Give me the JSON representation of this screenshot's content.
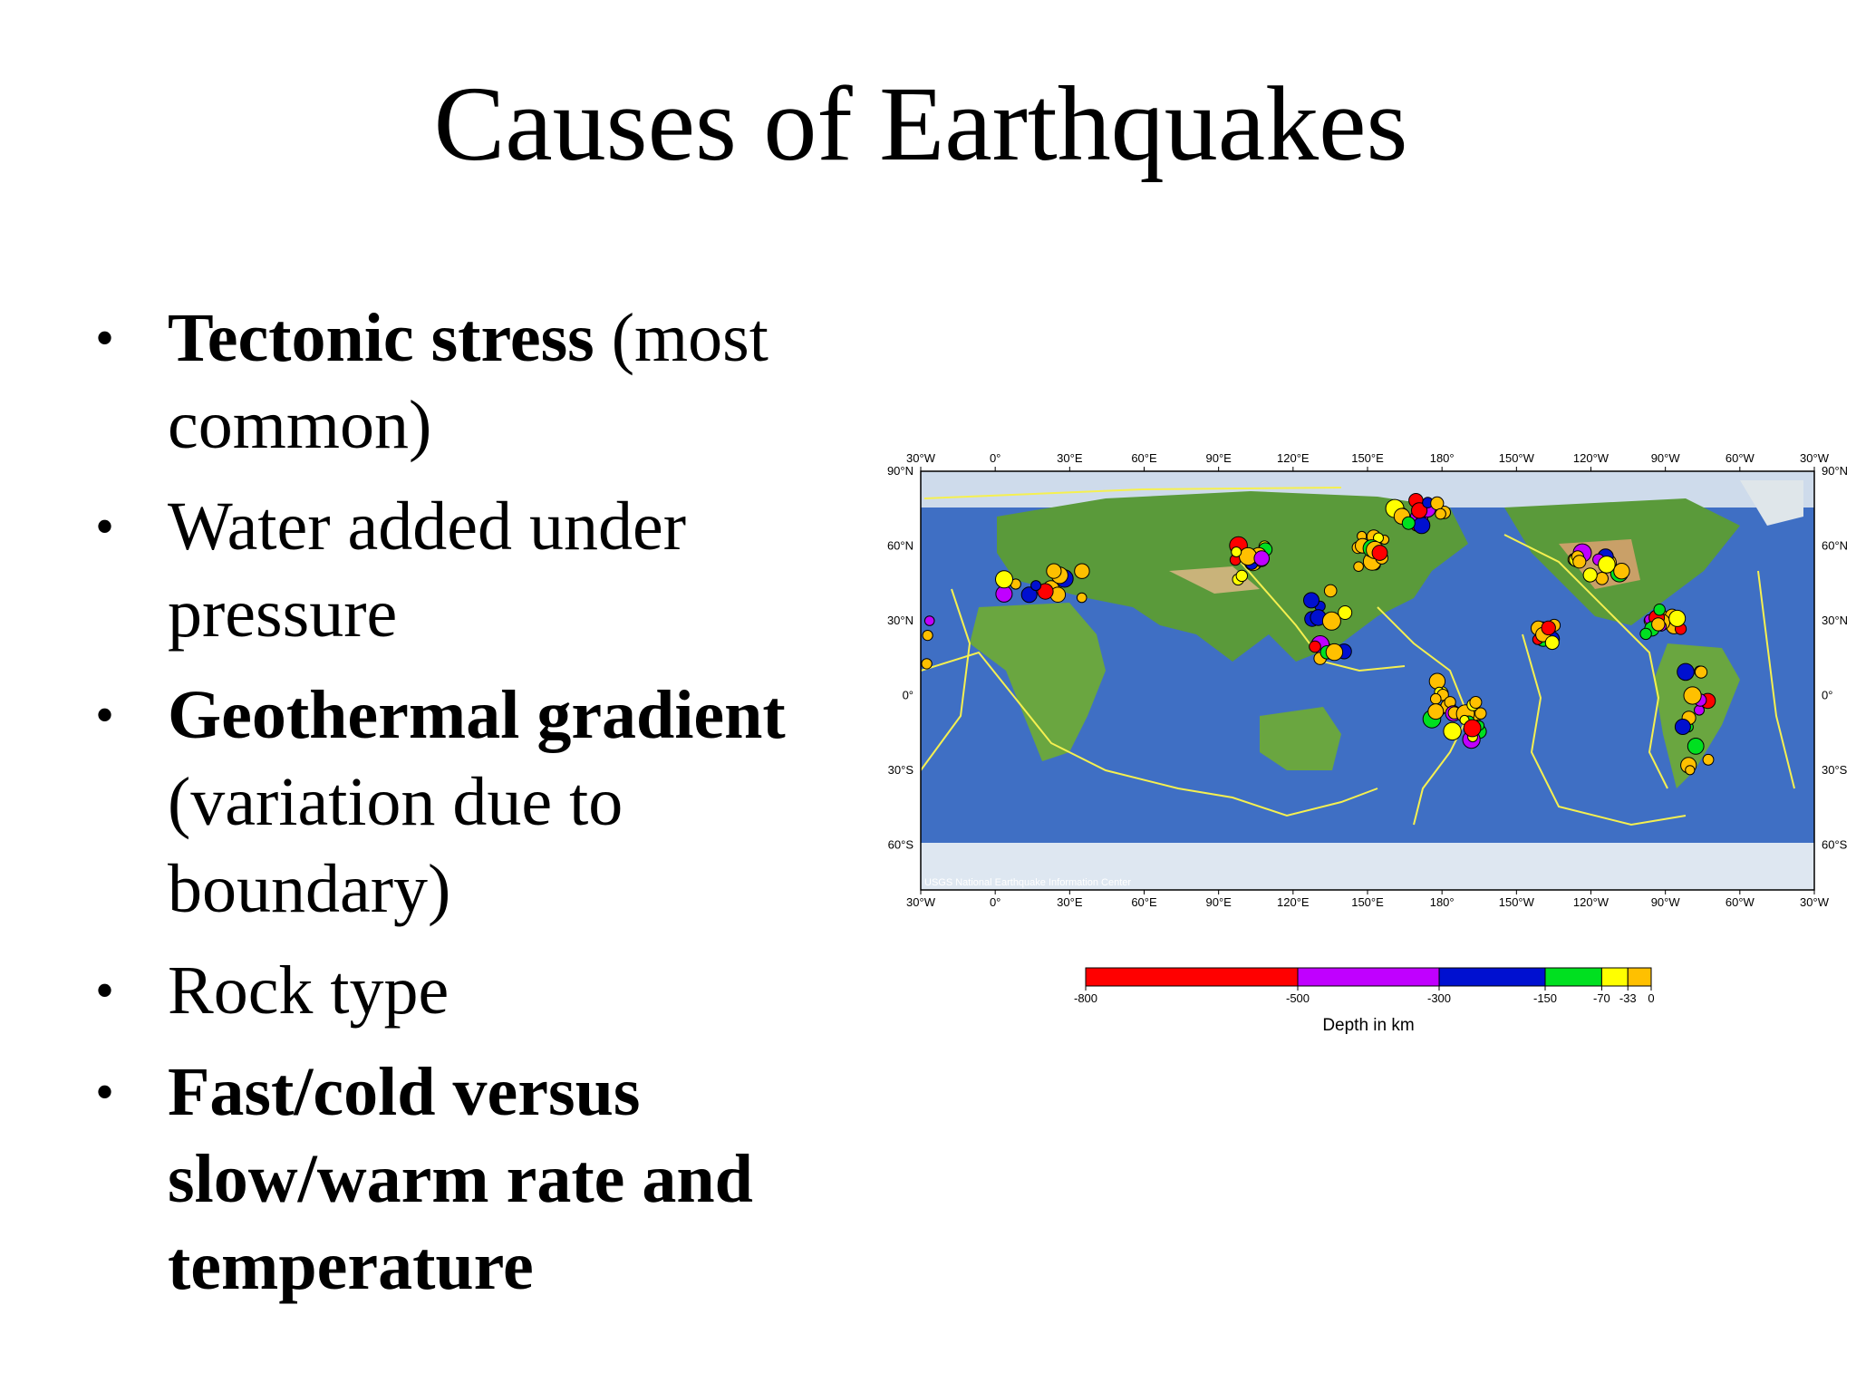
{
  "slide": {
    "title": "Causes of Earthquakes",
    "bullets": [
      {
        "bold": "Tectonic stress",
        "normal": " (most common)"
      },
      {
        "bold": "",
        "normal": "Water added under pressure"
      },
      {
        "bold": "Geothermal gradient",
        "normal": " (variation due to boundary)"
      },
      {
        "bold": "",
        "normal": "Rock type"
      },
      {
        "bold": "Fast/cold versus slow/warm rate and temperature",
        "normal": ""
      }
    ]
  },
  "map": {
    "top_lon_labels": [
      "30°W",
      "0°",
      "30°E",
      "60°E",
      "90°E",
      "120°E",
      "150°E",
      "180°",
      "150°W",
      "120°W",
      "90°W",
      "60°W",
      "30°W"
    ],
    "bottom_lon_labels": [
      "30°W",
      "0°",
      "30°E",
      "60°E",
      "90°E",
      "120°E",
      "150°E",
      "180°",
      "150°W",
      "120°W",
      "90°W",
      "60°W",
      "30°W"
    ],
    "left_lat_labels": [
      "90°N",
      "60°N",
      "30°N",
      "0°",
      "30°S",
      "60°S"
    ],
    "right_lat_labels": [
      "90°N",
      "60°N",
      "30°N",
      "0°",
      "30°S",
      "60°S"
    ],
    "credit": "USGS National Earthquake Information Center",
    "colors": {
      "ocean": "#3f6fc4",
      "land": "#5a9a3a",
      "boundary": "#f5f050"
    }
  },
  "legend": {
    "tick_labels": [
      "-800",
      "-500",
      "-300",
      "-150",
      "-70",
      "-33",
      "0"
    ],
    "axis_label": "Depth in km",
    "bands": [
      {
        "from": -800,
        "to": -500,
        "color": "#ff0000"
      },
      {
        "from": -500,
        "to": -300,
        "color": "#c000ff"
      },
      {
        "from": -300,
        "to": -150,
        "color": "#0010d0"
      },
      {
        "from": -150,
        "to": -70,
        "color": "#00e020"
      },
      {
        "from": -70,
        "to": -33,
        "color": "#ffff00"
      },
      {
        "from": -33,
        "to": 0,
        "color": "#ffc000"
      }
    ]
  }
}
